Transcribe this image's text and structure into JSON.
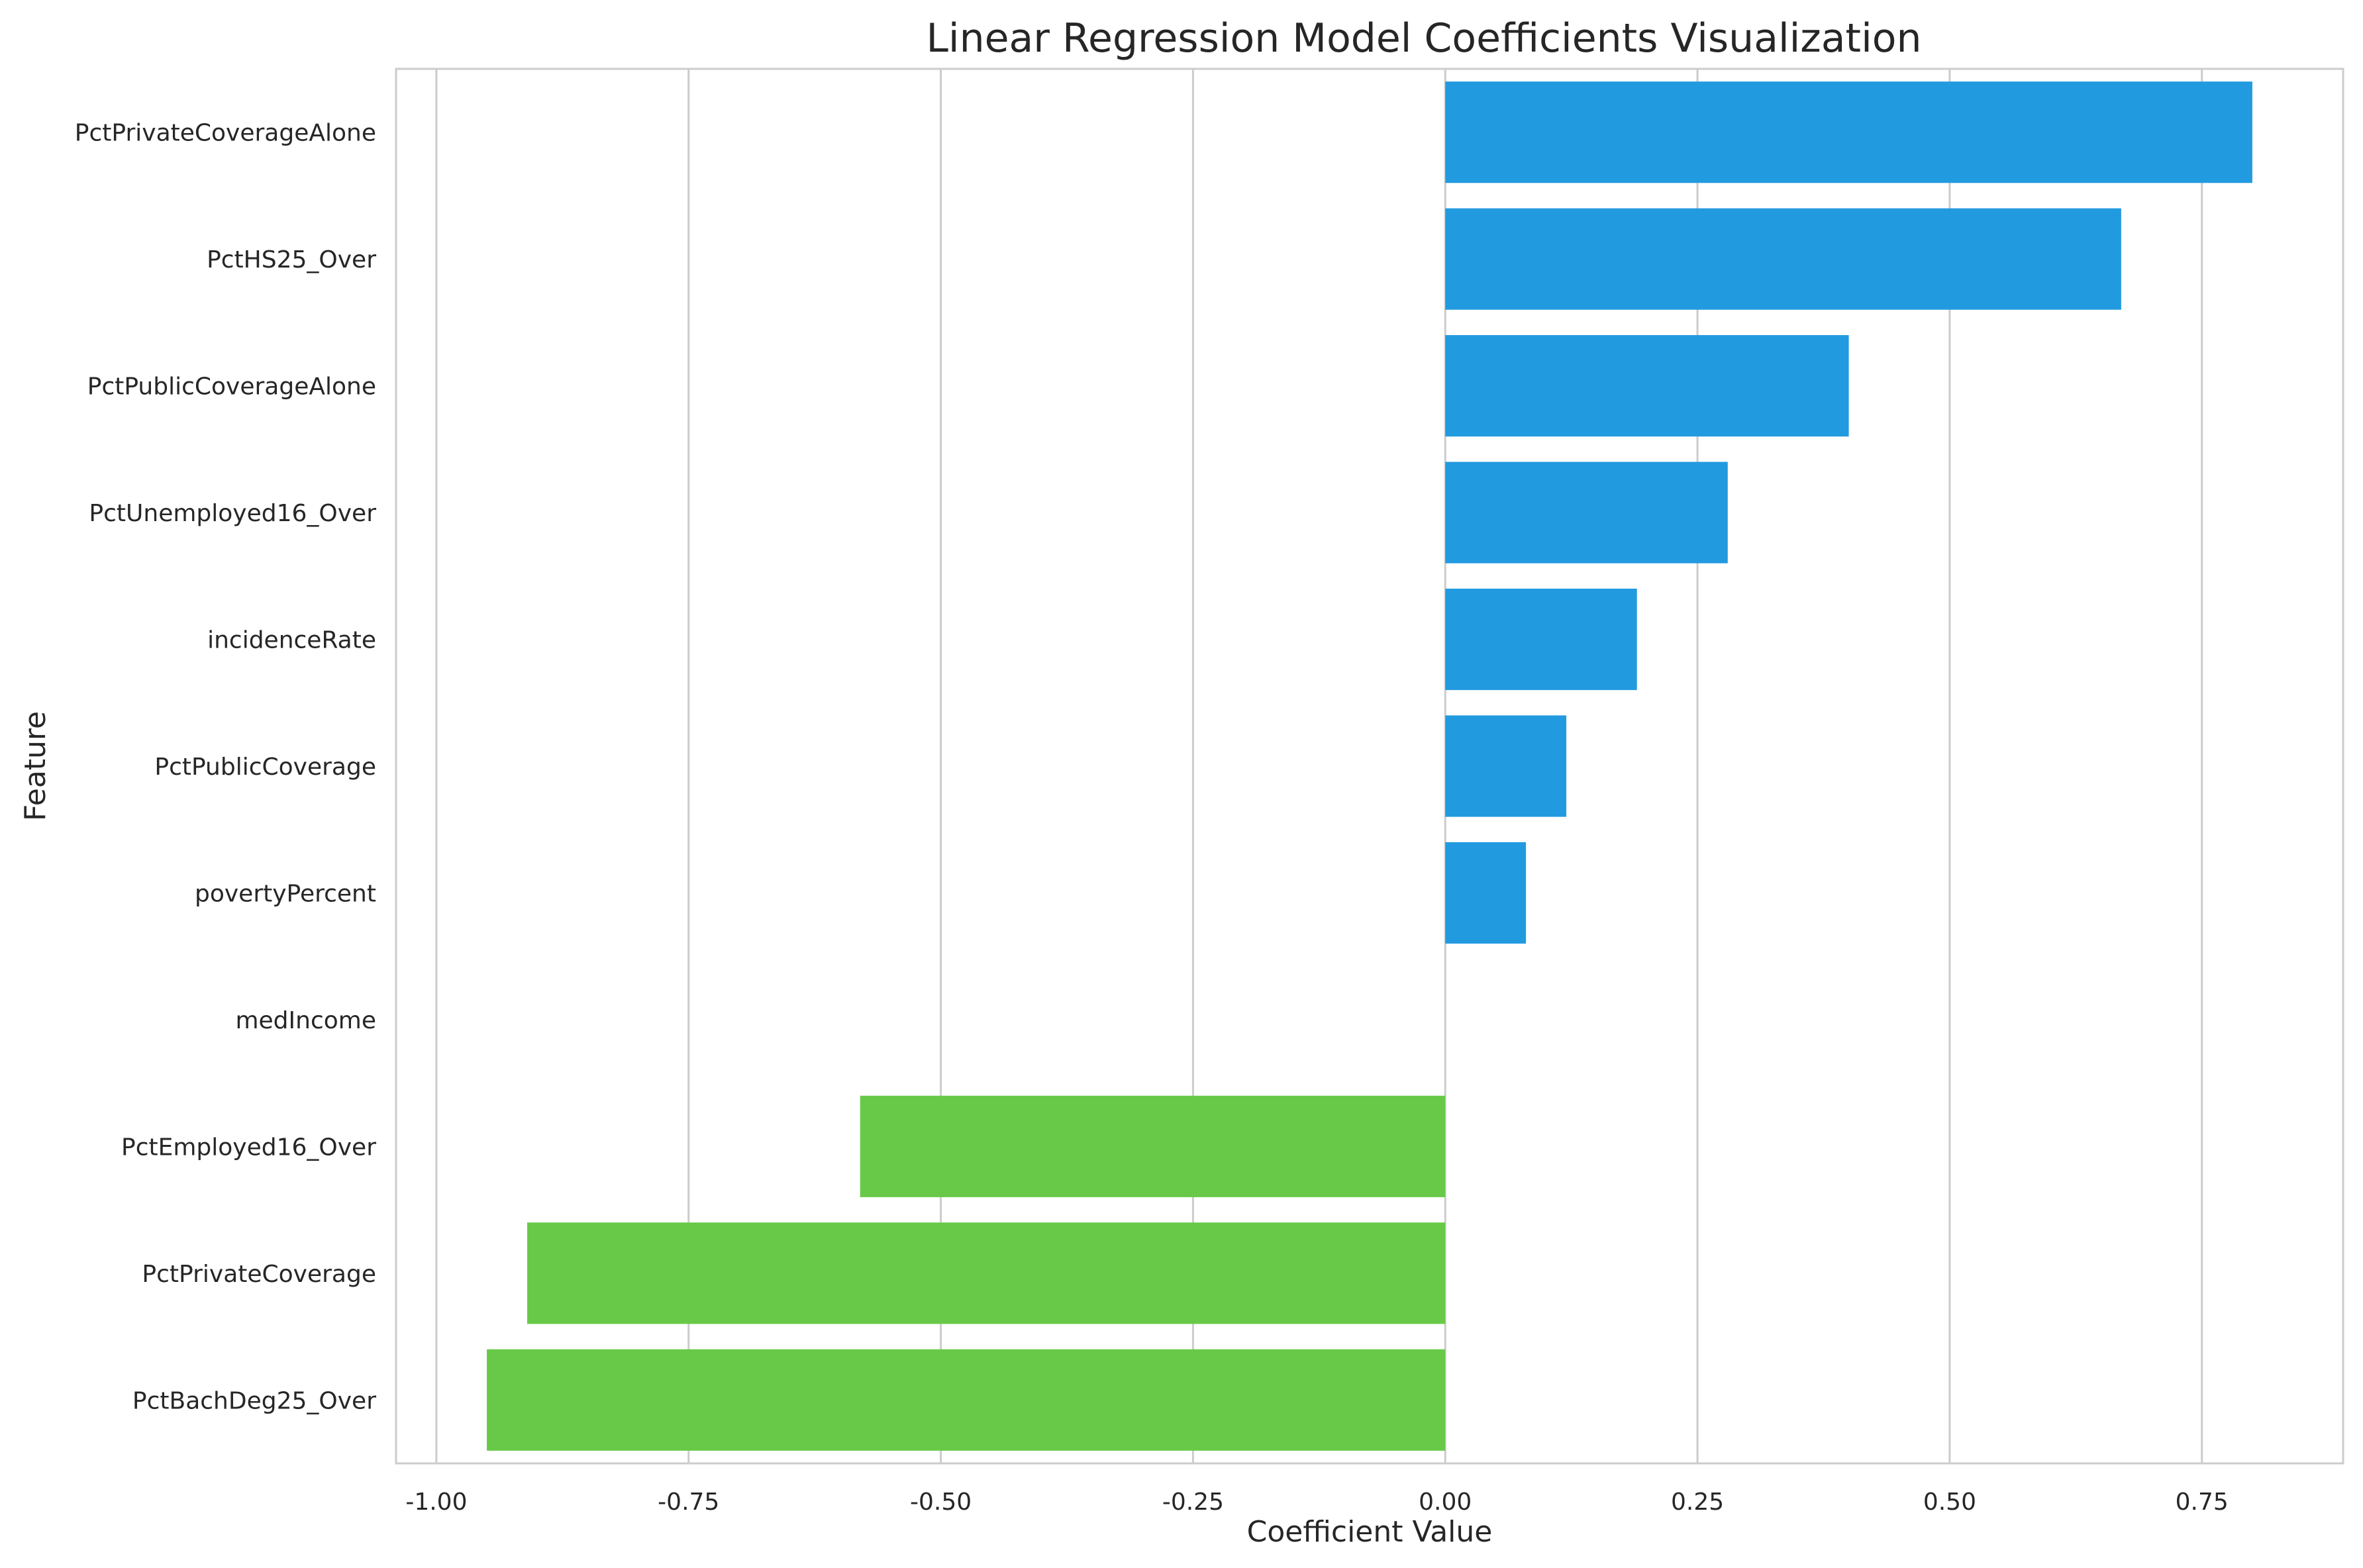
{
  "chart_data": {
    "type": "bar",
    "orientation": "horizontal",
    "title": "Linear Regression Model Coefficients Visualization",
    "xlabel": "Coefficient Value",
    "ylabel": "Feature",
    "xlim": [
      -1.04,
      0.89
    ],
    "xticks": [
      -1.0,
      -0.75,
      -0.5,
      -0.25,
      0.0,
      0.25,
      0.5,
      0.75
    ],
    "xtick_labels": [
      "-1.00",
      "-0.75",
      "-0.50",
      "-0.25",
      "0.00",
      "0.25",
      "0.50",
      "0.75"
    ],
    "grid": "vertical",
    "categories": [
      "PctPrivateCoverageAlone",
      "PctHS25_Over",
      "PctPublicCoverageAlone",
      "PctUnemployed16_Over",
      "incidenceRate",
      "PctPublicCoverage",
      "povertyPercent",
      "medIncome",
      "PctEmployed16_Over",
      "PctPrivateCoverage",
      "PctBachDeg25_Over"
    ],
    "values": [
      0.8,
      0.67,
      0.4,
      0.28,
      0.19,
      0.12,
      0.08,
      0.0,
      -0.58,
      -0.91,
      -0.95
    ],
    "colors": {
      "positive": "#229adf",
      "negative": "#67c947",
      "zero": "#ffffff",
      "grid": "#cccccc",
      "spine": "#cccccc"
    }
  }
}
